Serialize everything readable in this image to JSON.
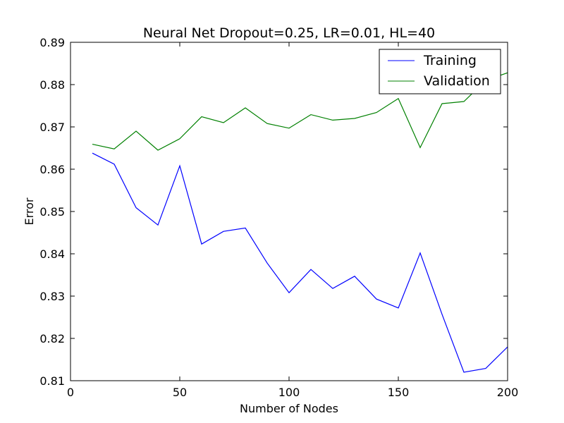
{
  "chart_data": {
    "type": "line",
    "title": "Neural Net Dropout=0.25, LR=0.01, HL=40",
    "xlabel": "Number of Nodes",
    "ylabel": "Error",
    "xlim": [
      0,
      200
    ],
    "ylim": [
      0.81,
      0.89
    ],
    "xticks": [
      0,
      50,
      100,
      150,
      200
    ],
    "xtick_labels": [
      "0",
      "50",
      "100",
      "150",
      "200"
    ],
    "yticks": [
      0.81,
      0.82,
      0.83,
      0.84,
      0.85,
      0.86,
      0.87,
      0.88,
      0.89
    ],
    "ytick_labels": [
      "0.81",
      "0.82",
      "0.83",
      "0.84",
      "0.85",
      "0.86",
      "0.87",
      "0.88",
      "0.89"
    ],
    "grid": false,
    "legend_position": "top-right",
    "x": [
      10,
      20,
      30,
      40,
      50,
      60,
      70,
      80,
      90,
      100,
      110,
      120,
      130,
      140,
      150,
      160,
      170,
      180,
      190,
      200
    ],
    "series": [
      {
        "name": "Training",
        "color": "#0000ff",
        "values": [
          0.8638,
          0.8612,
          0.8509,
          0.8468,
          0.8608,
          0.8423,
          0.8453,
          0.8461,
          0.8378,
          0.8308,
          0.8363,
          0.8318,
          0.8347,
          0.8293,
          0.8272,
          0.8402,
          0.8257,
          0.812,
          0.8129,
          0.818
        ]
      },
      {
        "name": "Validation",
        "color": "#008000",
        "values": [
          0.8659,
          0.8648,
          0.869,
          0.8645,
          0.8672,
          0.8724,
          0.871,
          0.8745,
          0.8708,
          0.8697,
          0.8729,
          0.8716,
          0.872,
          0.8734,
          0.8767,
          0.8651,
          0.8755,
          0.876,
          0.881,
          0.8828
        ]
      }
    ]
  }
}
